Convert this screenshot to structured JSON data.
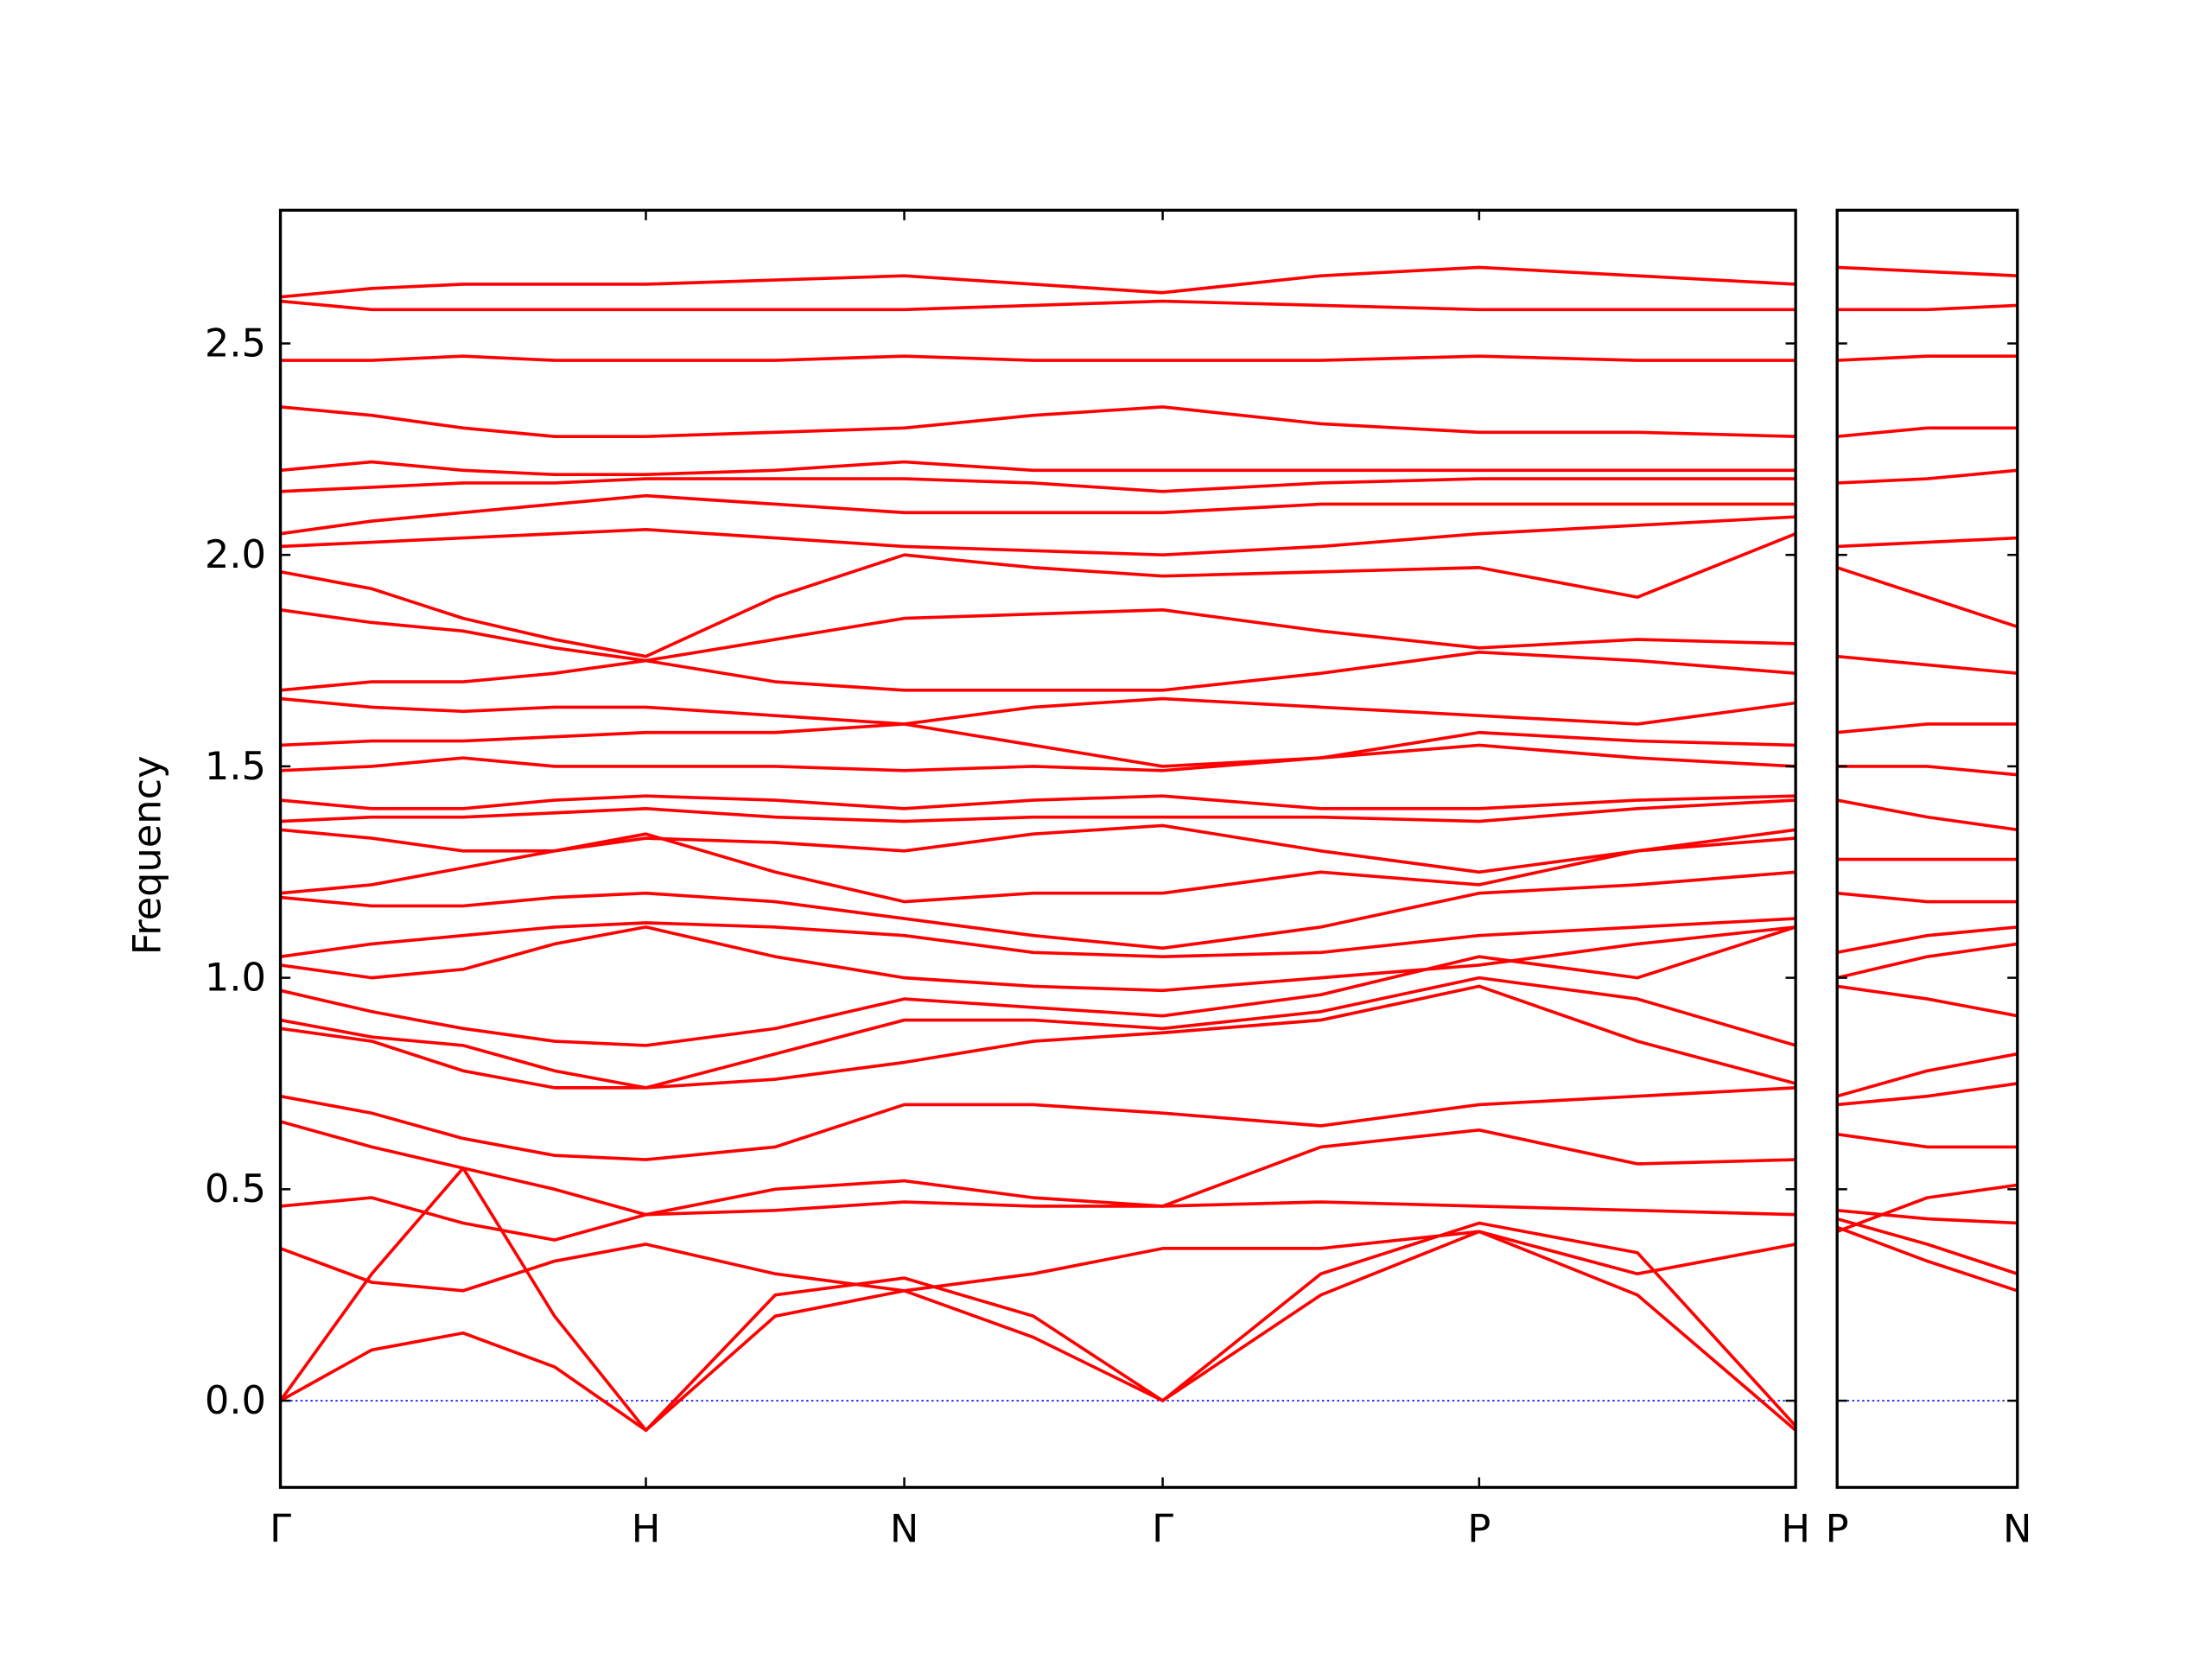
{
  "chart_data": [
    {
      "type": "line",
      "ylabel": "Frequency",
      "color": "#ff0000",
      "x": [
        0,
        0.25,
        0.5,
        0.75,
        1.0,
        1.354,
        1.707,
        2.06,
        2.414,
        2.847,
        3.28,
        3.713,
        4.146
      ],
      "xlim": [
        0,
        4.146
      ],
      "xticks": [
        {
          "value": 0,
          "label": "Γ"
        },
        {
          "value": 1.0,
          "label": "H"
        },
        {
          "value": 1.707,
          "label": "N"
        },
        {
          "value": 2.414,
          "label": "Γ"
        },
        {
          "value": 3.28,
          "label": "P"
        },
        {
          "value": 4.146,
          "label": "H"
        }
      ],
      "ylim": [
        -0.205,
        2.815
      ],
      "yticks": [
        {
          "value": 0,
          "label": "0.0"
        },
        0.5,
        {
          "value": 1,
          "label": "1.0"
        },
        1.5,
        {
          "value": 2,
          "label": "2.0"
        },
        2.5
      ],
      "reference_line": {
        "y": 0,
        "color": "#0000ff",
        "style": "dotted"
      },
      "series": [
        {
          "values": [
            0,
            0.12,
            0.16,
            0.08,
            -0.07,
            0.2,
            0.26,
            0.15,
            0,
            0.25,
            0.4,
            0.25,
            -0.07
          ]
        },
        {
          "values": [
            0,
            0.3,
            0.55,
            0.2,
            -0.07,
            0.25,
            0.29,
            0.2,
            0,
            0.3,
            0.42,
            0.35,
            -0.06
          ]
        },
        {
          "values": [
            0.36,
            0.28,
            0.26,
            0.33,
            0.37,
            0.3,
            0.26,
            0.3,
            0.36,
            0.36,
            0.4,
            0.3,
            0.37
          ]
        },
        {
          "values": [
            0.46,
            0.48,
            0.42,
            0.38,
            0.44,
            0.5,
            0.52,
            0.48,
            0.46,
            0.47,
            0.46,
            0.45,
            0.44
          ]
        },
        {
          "values": [
            0.66,
            0.6,
            0.55,
            0.5,
            0.44,
            0.45,
            0.47,
            0.46,
            0.46,
            0.6,
            0.64,
            0.56,
            0.57
          ]
        },
        {
          "values": [
            0.72,
            0.68,
            0.62,
            0.58,
            0.57,
            0.6,
            0.7,
            0.7,
            0.68,
            0.65,
            0.7,
            0.72,
            0.74
          ]
        },
        {
          "values": [
            0.88,
            0.85,
            0.78,
            0.74,
            0.74,
            0.76,
            0.8,
            0.85,
            0.87,
            0.9,
            0.98,
            0.85,
            0.75
          ]
        },
        {
          "values": [
            0.9,
            0.86,
            0.84,
            0.78,
            0.74,
            0.82,
            0.9,
            0.9,
            0.88,
            0.92,
            1.0,
            0.95,
            0.84
          ]
        },
        {
          "values": [
            0.97,
            0.92,
            0.88,
            0.85,
            0.84,
            0.88,
            0.95,
            0.93,
            0.91,
            0.96,
            1.05,
            1.0,
            1.12
          ]
        },
        {
          "values": [
            1.03,
            1.0,
            1.02,
            1.08,
            1.12,
            1.05,
            1.0,
            0.98,
            0.97,
            1.0,
            1.03,
            1.08,
            1.12
          ]
        },
        {
          "values": [
            1.05,
            1.08,
            1.1,
            1.12,
            1.13,
            1.12,
            1.1,
            1.06,
            1.05,
            1.06,
            1.1,
            1.12,
            1.14
          ]
        },
        {
          "values": [
            1.19,
            1.17,
            1.17,
            1.19,
            1.2,
            1.18,
            1.14,
            1.1,
            1.07,
            1.12,
            1.2,
            1.22,
            1.25
          ]
        },
        {
          "values": [
            1.2,
            1.22,
            1.26,
            1.3,
            1.34,
            1.25,
            1.18,
            1.2,
            1.2,
            1.25,
            1.22,
            1.3,
            1.33
          ]
        },
        {
          "values": [
            1.35,
            1.33,
            1.3,
            1.3,
            1.33,
            1.32,
            1.3,
            1.34,
            1.36,
            1.3,
            1.25,
            1.3,
            1.35
          ]
        },
        {
          "values": [
            1.37,
            1.38,
            1.38,
            1.39,
            1.4,
            1.38,
            1.37,
            1.38,
            1.38,
            1.38,
            1.37,
            1.4,
            1.42
          ]
        },
        {
          "values": [
            1.42,
            1.4,
            1.4,
            1.42,
            1.43,
            1.42,
            1.4,
            1.42,
            1.43,
            1.4,
            1.4,
            1.42,
            1.43
          ]
        },
        {
          "values": [
            1.49,
            1.5,
            1.52,
            1.5,
            1.5,
            1.5,
            1.49,
            1.5,
            1.49,
            1.52,
            1.55,
            1.52,
            1.5
          ]
        },
        {
          "values": [
            1.55,
            1.56,
            1.56,
            1.57,
            1.58,
            1.58,
            1.6,
            1.55,
            1.5,
            1.52,
            1.58,
            1.56,
            1.55
          ]
        },
        {
          "values": [
            1.66,
            1.64,
            1.63,
            1.64,
            1.64,
            1.62,
            1.6,
            1.64,
            1.66,
            1.64,
            1.62,
            1.6,
            1.65
          ]
        },
        {
          "values": [
            1.68,
            1.7,
            1.7,
            1.72,
            1.75,
            1.7,
            1.68,
            1.68,
            1.68,
            1.72,
            1.77,
            1.75,
            1.72
          ]
        },
        {
          "values": [
            1.87,
            1.84,
            1.82,
            1.78,
            1.75,
            1.8,
            1.85,
            1.86,
            1.87,
            1.82,
            1.78,
            1.8,
            1.79
          ]
        },
        {
          "values": [
            1.96,
            1.92,
            1.85,
            1.8,
            1.76,
            1.9,
            2.0,
            1.97,
            1.95,
            1.96,
            1.97,
            1.9,
            2.05
          ]
        },
        {
          "values": [
            2.02,
            2.03,
            2.04,
            2.05,
            2.06,
            2.04,
            2.02,
            2.01,
            2.0,
            2.02,
            2.05,
            2.07,
            2.09
          ]
        },
        {
          "values": [
            2.05,
            2.08,
            2.1,
            2.12,
            2.14,
            2.12,
            2.1,
            2.1,
            2.1,
            2.12,
            2.12,
            2.12,
            2.12
          ]
        },
        {
          "values": [
            2.15,
            2.16,
            2.17,
            2.17,
            2.18,
            2.18,
            2.18,
            2.17,
            2.15,
            2.17,
            2.18,
            2.18,
            2.18
          ]
        },
        {
          "values": [
            2.2,
            2.22,
            2.2,
            2.19,
            2.19,
            2.2,
            2.22,
            2.2,
            2.2,
            2.2,
            2.2,
            2.2,
            2.2
          ]
        },
        {
          "values": [
            2.35,
            2.33,
            2.3,
            2.28,
            2.28,
            2.29,
            2.3,
            2.33,
            2.35,
            2.31,
            2.29,
            2.29,
            2.28
          ]
        },
        {
          "values": [
            2.46,
            2.46,
            2.47,
            2.46,
            2.46,
            2.46,
            2.47,
            2.46,
            2.46,
            2.46,
            2.47,
            2.46,
            2.46
          ]
        },
        {
          "values": [
            2.6,
            2.58,
            2.58,
            2.58,
            2.58,
            2.58,
            2.58,
            2.59,
            2.6,
            2.59,
            2.58,
            2.58,
            2.58
          ]
        },
        {
          "values": [
            2.61,
            2.63,
            2.64,
            2.64,
            2.64,
            2.65,
            2.66,
            2.64,
            2.62,
            2.66,
            2.68,
            2.66,
            2.64
          ]
        }
      ]
    },
    {
      "type": "line",
      "color": "#ff0000",
      "x": [
        0,
        0.25,
        0.5
      ],
      "xlim": [
        0,
        0.5
      ],
      "xticks": [
        {
          "value": 0,
          "label": "P"
        },
        {
          "value": 0.5,
          "label": "N"
        }
      ],
      "ylim": [
        -0.205,
        2.815
      ],
      "yticks": [
        0,
        0.5,
        1,
        1.5,
        2,
        2.5
      ],
      "ytick_labels": false,
      "reference_line": {
        "y": 0,
        "color": "#0000ff",
        "style": "dotted"
      },
      "series": [
        {
          "values": [
            0.41,
            0.33,
            0.26
          ]
        },
        {
          "values": [
            0.43,
            0.37,
            0.3
          ]
        },
        {
          "values": [
            0.45,
            0.43,
            0.42
          ]
        },
        {
          "values": [
            0.4,
            0.48,
            0.51
          ]
        },
        {
          "values": [
            0.63,
            0.6,
            0.6
          ]
        },
        {
          "values": [
            0.7,
            0.72,
            0.75
          ]
        },
        {
          "values": [
            0.72,
            0.78,
            0.82
          ]
        },
        {
          "values": [
            0.98,
            0.95,
            0.91
          ]
        },
        {
          "values": [
            1.0,
            1.05,
            1.08
          ]
        },
        {
          "values": [
            1.06,
            1.1,
            1.12
          ]
        },
        {
          "values": [
            1.2,
            1.18,
            1.18
          ]
        },
        {
          "values": [
            1.28,
            1.28,
            1.28
          ]
        },
        {
          "values": [
            1.42,
            1.38,
            1.35
          ]
        },
        {
          "values": [
            1.5,
            1.5,
            1.48
          ]
        },
        {
          "values": [
            1.58,
            1.6,
            1.6
          ]
        },
        {
          "values": [
            1.76,
            1.74,
            1.72
          ]
        },
        {
          "values": [
            1.97,
            1.9,
            1.83
          ]
        },
        {
          "values": [
            2.02,
            2.03,
            2.04
          ]
        },
        {
          "values": [
            2.17,
            2.18,
            2.2
          ]
        },
        {
          "values": [
            2.28,
            2.3,
            2.3
          ]
        },
        {
          "values": [
            2.46,
            2.47,
            2.47
          ]
        },
        {
          "values": [
            2.58,
            2.58,
            2.59
          ]
        },
        {
          "values": [
            2.68,
            2.67,
            2.66
          ]
        }
      ]
    }
  ]
}
